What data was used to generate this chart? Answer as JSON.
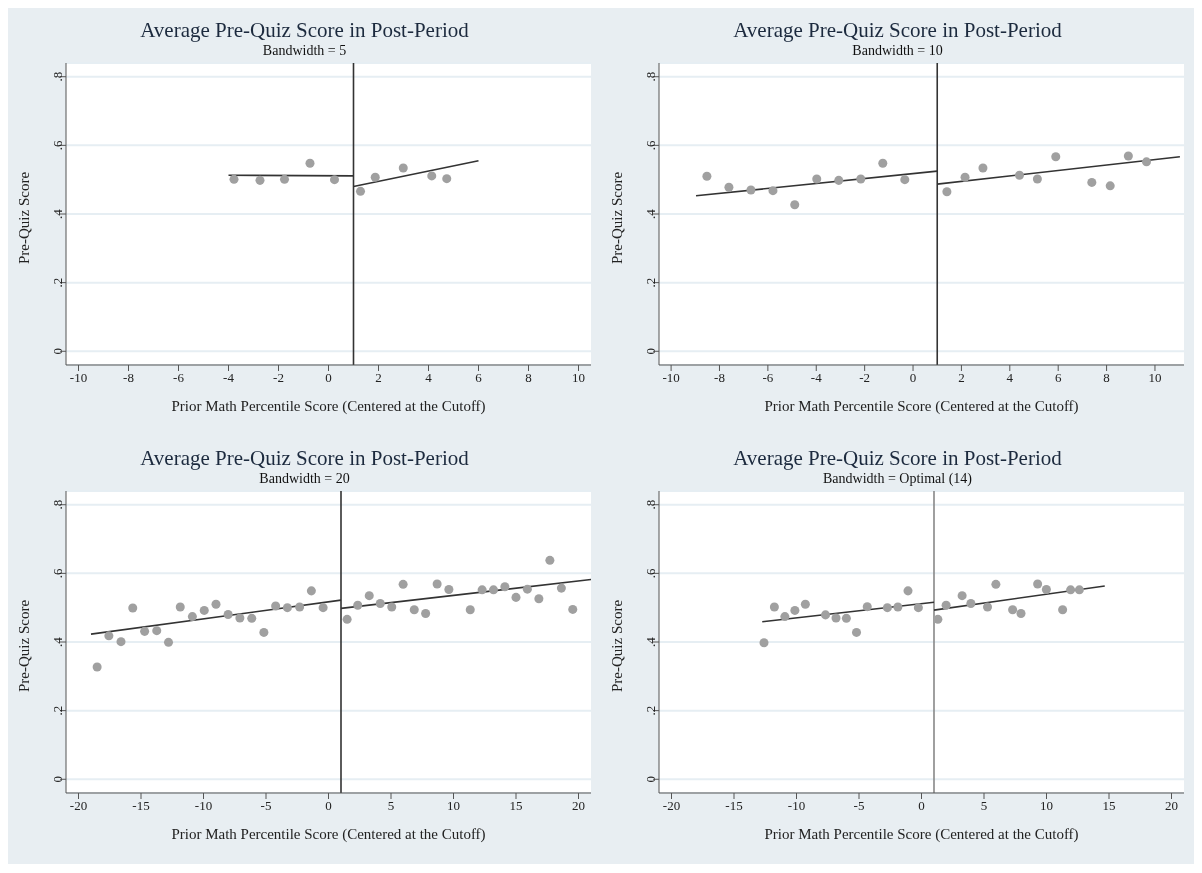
{
  "chart_data": [
    {
      "type": "scatter",
      "title": "Average Pre-Quiz Score in Post-Period",
      "subtitle": "Bandwidth = 5",
      "xlabel": "Prior Math Percentile Score (Centered at the Cutoff)",
      "ylabel": "Pre-Quiz Score",
      "xlim": [
        -10.5,
        10.5
      ],
      "xticks": [
        -10,
        -8,
        -6,
        -4,
        -2,
        0,
        2,
        4,
        6,
        8,
        10
      ],
      "ylim": [
        -0.04,
        0.84
      ],
      "yticks": [
        {
          "value": 0,
          "label": "0"
        },
        {
          "value": 0.2,
          "label": ".2"
        },
        {
          "value": 0.4,
          "label": ".4"
        },
        {
          "value": 0.6,
          "label": ".6"
        },
        {
          "value": 0.8,
          "label": ".8"
        }
      ],
      "grid": "y",
      "ref_lines": [
        {
          "axis": "x",
          "value": 1,
          "color": "#333333"
        }
      ],
      "series": [
        {
          "marker": "circle",
          "color": "#a0a0a0",
          "x": [
            -3.78,
            -2.74,
            -1.76,
            -0.74,
            0.24,
            1.28,
            1.87,
            2.99,
            4.13,
            4.73
          ],
          "values": [
            0.501,
            0.498,
            0.501,
            0.548,
            0.5,
            0.466,
            0.507,
            0.534,
            0.511,
            0.503
          ]
        },
        {
          "type": "line",
          "color": "#333333",
          "x": [
            -4,
            1
          ],
          "values": [
            0.513,
            0.511
          ]
        },
        {
          "type": "line",
          "color": "#333333",
          "x": [
            1,
            6
          ],
          "values": [
            0.48,
            0.555
          ]
        }
      ]
    },
    {
      "type": "scatter",
      "title": "Average Pre-Quiz Score in Post-Period",
      "subtitle": "Bandwidth = 10",
      "xlabel": "Prior Math Percentile Score (Centered at the Cutoff)",
      "ylabel": "Pre-Quiz Score",
      "xlim": [
        -10.5,
        11.2
      ],
      "xticks": [
        -10,
        -8,
        -6,
        -4,
        -2,
        0,
        2,
        4,
        6,
        8,
        10
      ],
      "ylim": [
        -0.04,
        0.84
      ],
      "yticks": [
        {
          "value": 0,
          "label": "0"
        },
        {
          "value": 0.2,
          "label": ".2"
        },
        {
          "value": 0.4,
          "label": ".4"
        },
        {
          "value": 0.6,
          "label": ".6"
        },
        {
          "value": 0.8,
          "label": ".8"
        }
      ],
      "grid": "y",
      "ref_lines": [
        {
          "axis": "x",
          "value": 1,
          "color": "#333333"
        }
      ],
      "series": [
        {
          "marker": "circle",
          "color": "#a0a0a0",
          "x": [
            -8.52,
            -7.61,
            -6.7,
            -5.79,
            -4.89,
            -3.98,
            -3.07,
            -2.16,
            -1.25,
            -0.34,
            1.4,
            2.15,
            2.89,
            4.4,
            5.14,
            5.9,
            7.39,
            8.15,
            8.9,
            9.65
          ],
          "values": [
            0.51,
            0.478,
            0.47,
            0.468,
            0.427,
            0.502,
            0.498,
            0.502,
            0.548,
            0.5,
            0.465,
            0.507,
            0.534,
            0.513,
            0.502,
            0.567,
            0.492,
            0.482,
            0.569,
            0.552
          ]
        },
        {
          "type": "line",
          "color": "#333333",
          "x": [
            -8.97,
            1
          ],
          "values": [
            0.453,
            0.525
          ]
        },
        {
          "type": "line",
          "color": "#333333",
          "x": [
            1,
            11.03
          ],
          "values": [
            0.487,
            0.567
          ]
        }
      ]
    },
    {
      "type": "scatter",
      "title": "Average Pre-Quiz Score in Post-Period",
      "subtitle": "Bandwidth = 20",
      "xlabel": "Prior Math Percentile Score (Centered at the Cutoff)",
      "ylabel": "Pre-Quiz Score",
      "xlim": [
        -21,
        21
      ],
      "xticks": [
        -20,
        -15,
        -10,
        -5,
        0,
        5,
        10,
        15,
        20
      ],
      "ylim": [
        -0.04,
        0.84
      ],
      "yticks": [
        {
          "value": 0,
          "label": "0"
        },
        {
          "value": 0.2,
          "label": ".2"
        },
        {
          "value": 0.4,
          "label": ".4"
        },
        {
          "value": 0.6,
          "label": ".6"
        },
        {
          "value": 0.8,
          "label": ".8"
        }
      ],
      "grid": "y",
      "ref_lines": [
        {
          "axis": "x",
          "value": 1,
          "color": "#333333"
        }
      ],
      "series": [
        {
          "marker": "circle",
          "color": "#a0a0a0",
          "x": [
            -18.51,
            -17.57,
            -16.6,
            -15.66,
            -14.71,
            -13.74,
            -12.8,
            -11.86,
            -10.89,
            -9.94,
            -9,
            -8.03,
            -7.09,
            -6.14,
            -5.17,
            -4.23,
            -3.29,
            -2.31,
            -1.37,
            -0.43,
            1.49,
            2.34,
            3.26,
            4.14,
            5.06,
            5.97,
            6.86,
            7.77,
            8.69,
            9.63,
            11.34,
            12.29,
            13.2,
            14.11,
            15,
            15.91,
            16.83,
            17.71,
            18.63,
            19.54
          ],
          "values": [
            0.327,
            0.418,
            0.401,
            0.499,
            0.431,
            0.433,
            0.399,
            0.502,
            0.474,
            0.492,
            0.51,
            0.48,
            0.47,
            0.469,
            0.428,
            0.505,
            0.5,
            0.502,
            0.549,
            0.5,
            0.466,
            0.507,
            0.535,
            0.512,
            0.502,
            0.568,
            0.494,
            0.483,
            0.569,
            0.553,
            0.494,
            0.552,
            0.552,
            0.561,
            0.53,
            0.554,
            0.526,
            0.638,
            0.557,
            0.495
          ]
        },
        {
          "type": "line",
          "color": "#333333",
          "x": [
            -19,
            1
          ],
          "values": [
            0.423,
            0.522
          ]
        },
        {
          "type": "line",
          "color": "#333333",
          "x": [
            1,
            21
          ],
          "values": [
            0.498,
            0.582
          ]
        }
      ]
    },
    {
      "type": "scatter",
      "title": "Average Pre-Quiz Score in Post-Period",
      "subtitle": "Bandwidth = Optimal (14)",
      "xlabel": "Prior Math Percentile Score (Centered at the Cutoff)",
      "ylabel": "Pre-Quiz Score",
      "xlim": [
        -21,
        21
      ],
      "xticks": [
        -20,
        -15,
        -10,
        -5,
        0,
        5,
        10,
        15,
        20
      ],
      "ylim": [
        -0.04,
        0.84
      ],
      "yticks": [
        {
          "value": 0,
          "label": "0"
        },
        {
          "value": 0.2,
          "label": ".2"
        },
        {
          "value": 0.4,
          "label": ".4"
        },
        {
          "value": 0.6,
          "label": ".6"
        },
        {
          "value": 0.8,
          "label": ".8"
        }
      ],
      "grid": "y",
      "ref_lines": [
        {
          "axis": "x",
          "value": 1,
          "color": "#888888"
        }
      ],
      "series": [
        {
          "marker": "circle",
          "color": "#a0a0a0",
          "x": [
            -12.6,
            -11.77,
            -10.93,
            -10.13,
            -9.29,
            -7.68,
            -6.84,
            -6.01,
            -5.2,
            -4.34,
            -2.73,
            -1.89,
            -1.08,
            -0.25,
            1.31,
            1.97,
            3.25,
            3.95,
            5.28,
            5.95,
            7.29,
            7.96,
            9.29,
            9.99,
            11.29,
            11.93,
            12.63
          ],
          "values": [
            0.398,
            0.502,
            0.474,
            0.492,
            0.51,
            0.479,
            0.47,
            0.469,
            0.428,
            0.503,
            0.5,
            0.502,
            0.549,
            0.5,
            0.466,
            0.507,
            0.535,
            0.512,
            0.502,
            0.568,
            0.494,
            0.483,
            0.569,
            0.553,
            0.494,
            0.552,
            0.552
          ]
        },
        {
          "type": "line",
          "color": "#333333",
          "x": [
            -12.74,
            1
          ],
          "values": [
            0.459,
            0.516
          ]
        },
        {
          "type": "line",
          "color": "#333333",
          "x": [
            1,
            14.66
          ],
          "values": [
            0.493,
            0.563
          ]
        }
      ]
    }
  ]
}
